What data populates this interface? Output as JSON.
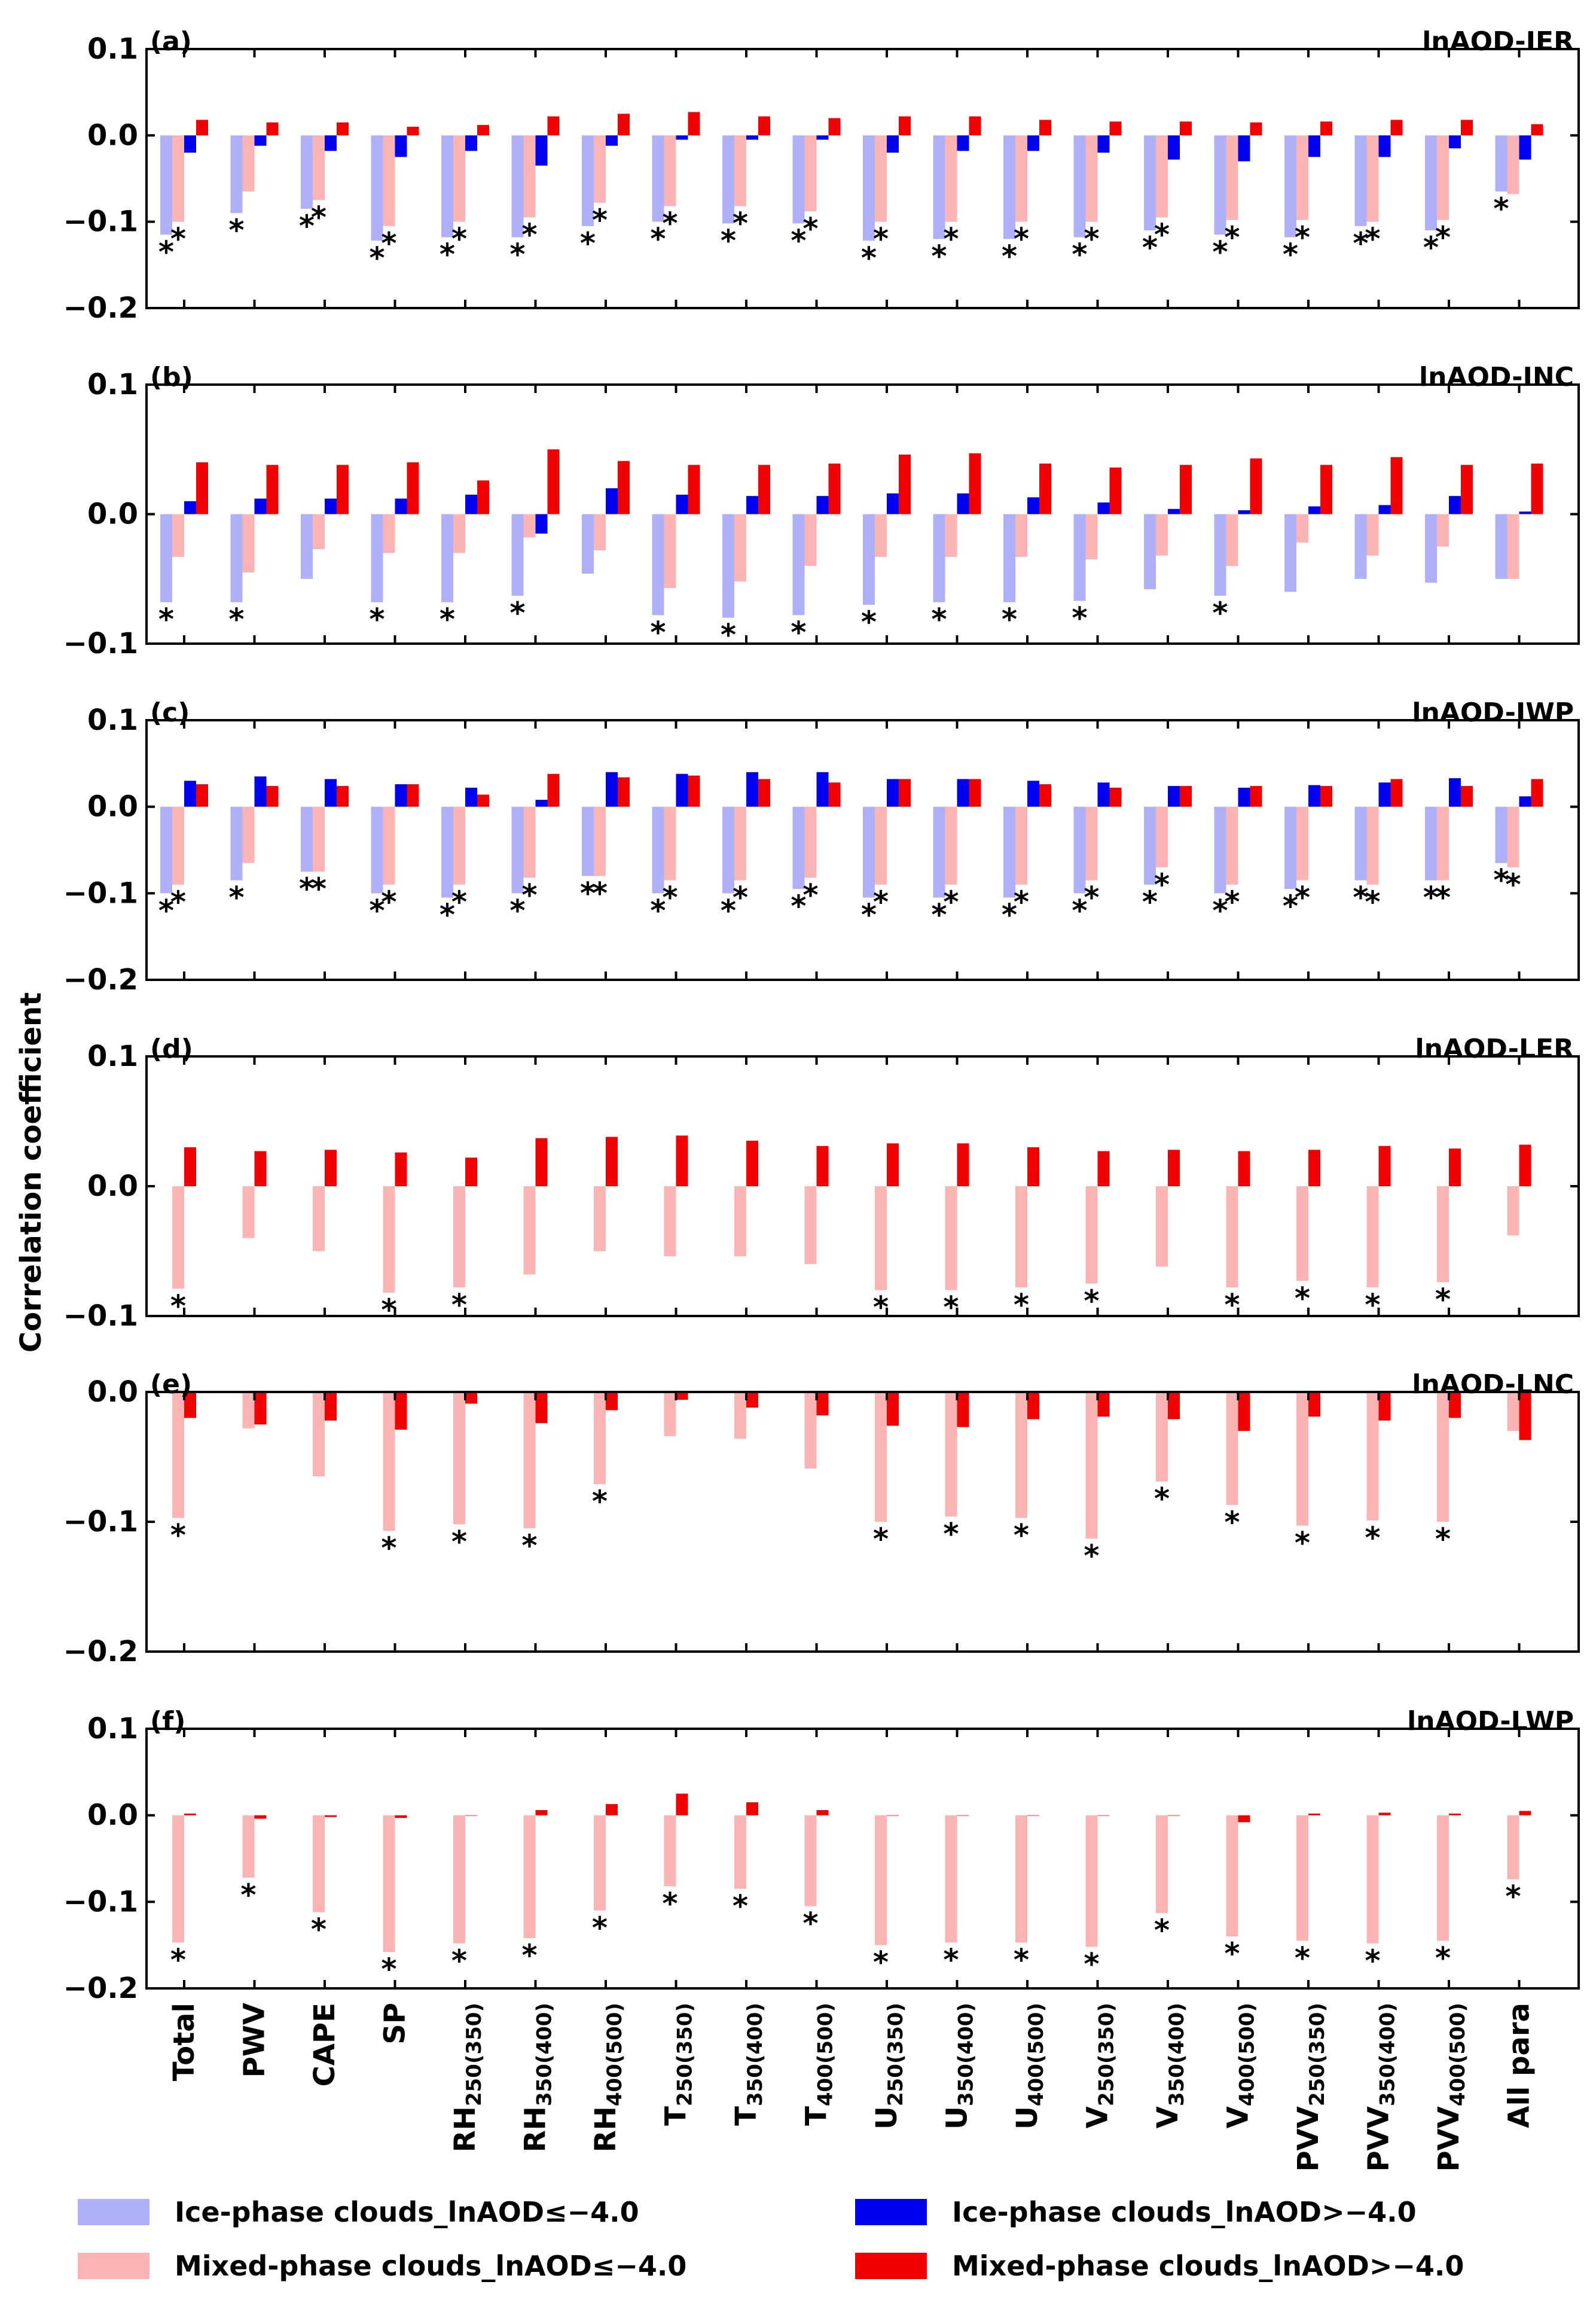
{
  "chart_data": {
    "type": "bar",
    "ylabel": "Correlation coefficient",
    "categories": [
      {
        "main": "Total",
        "sub": ""
      },
      {
        "main": "PWV",
        "sub": ""
      },
      {
        "main": "CAPE",
        "sub": ""
      },
      {
        "main": "SP",
        "sub": ""
      },
      {
        "main": "RH",
        "sub": "250(350)"
      },
      {
        "main": "RH",
        "sub": "350(400)"
      },
      {
        "main": "RH",
        "sub": "400(500)"
      },
      {
        "main": "T",
        "sub": "250(350)"
      },
      {
        "main": "T",
        "sub": "350(400)"
      },
      {
        "main": "T",
        "sub": "400(500)"
      },
      {
        "main": "U",
        "sub": "250(350)"
      },
      {
        "main": "U",
        "sub": "350(400)"
      },
      {
        "main": "U",
        "sub": "400(500)"
      },
      {
        "main": "V",
        "sub": "250(350)"
      },
      {
        "main": "V",
        "sub": "350(400)"
      },
      {
        "main": "V",
        "sub": "400(500)"
      },
      {
        "main": "PVV",
        "sub": "250(350)"
      },
      {
        "main": "PVV",
        "sub": "350(400)"
      },
      {
        "main": "PVV",
        "sub": "400(500)"
      },
      {
        "main": "All para",
        "sub": ""
      }
    ],
    "legend": [
      {
        "label": "Ice-phase clouds_lnAOD≤−4.0",
        "color": "#b0b0f8"
      },
      {
        "label": "Ice-phase clouds_lnAOD>−4.0",
        "color": "#0000f0"
      },
      {
        "label": "Mixed-phase clouds_lnAOD≤−4.0",
        "color": "#fab4b4"
      },
      {
        "label": "Mixed-phase clouds_lnAOD>−4.0",
        "color": "#f00000"
      }
    ],
    "significance_marker": "*",
    "panels": [
      {
        "letter": "(a)",
        "title": "lnAOD-IER",
        "ylim": [
          -0.2,
          0.1
        ],
        "yticks": [
          0.1,
          0.0,
          -0.1,
          -0.2
        ],
        "ytick_labels": [
          "0.1",
          "0.0",
          "−0.1",
          "−0.2"
        ],
        "series": [
          {
            "name": "Ice-phase clouds_lnAOD≤−4.0",
            "values": [
              -0.115,
              -0.09,
              -0.085,
              -0.122,
              -0.118,
              -0.118,
              -0.105,
              -0.1,
              -0.102,
              -0.102,
              -0.122,
              -0.12,
              -0.12,
              -0.118,
              -0.11,
              -0.115,
              -0.118,
              -0.105,
              -0.11,
              -0.065
            ],
            "stars": [
              true,
              true,
              true,
              true,
              true,
              true,
              true,
              true,
              true,
              true,
              true,
              true,
              true,
              true,
              true,
              true,
              true,
              true,
              true,
              true
            ]
          },
          {
            "name": "Mixed-phase clouds_lnAOD≤−4.0",
            "values": [
              -0.1,
              -0.065,
              -0.075,
              -0.105,
              -0.1,
              -0.095,
              -0.078,
              -0.082,
              -0.082,
              -0.088,
              -0.1,
              -0.1,
              -0.1,
              -0.1,
              -0.095,
              -0.098,
              -0.098,
              -0.1,
              -0.098,
              -0.068
            ],
            "stars": [
              true,
              false,
              true,
              true,
              true,
              true,
              true,
              true,
              true,
              true,
              true,
              true,
              true,
              true,
              true,
              true,
              true,
              true,
              true,
              false
            ]
          },
          {
            "name": "Ice-phase clouds_lnAOD>−4.0",
            "values": [
              -0.02,
              -0.012,
              -0.018,
              -0.025,
              -0.018,
              -0.035,
              -0.012,
              -0.005,
              -0.005,
              -0.005,
              -0.02,
              -0.018,
              -0.018,
              -0.02,
              -0.028,
              -0.03,
              -0.025,
              -0.025,
              -0.015,
              -0.028
            ]
          },
          {
            "name": "Mixed-phase clouds_lnAOD>−4.0",
            "values": [
              0.018,
              0.015,
              0.015,
              0.01,
              0.012,
              0.022,
              0.025,
              0.027,
              0.022,
              0.02,
              0.022,
              0.022,
              0.018,
              0.016,
              0.016,
              0.015,
              0.016,
              0.018,
              0.018,
              0.013
            ]
          }
        ]
      },
      {
        "letter": "(b)",
        "title": "lnAOD-INC",
        "ylim": [
          -0.1,
          0.1
        ],
        "yticks": [
          0.1,
          0.0,
          -0.1
        ],
        "ytick_labels": [
          "0.1",
          "0.0",
          "−0.1"
        ],
        "series": [
          {
            "name": "Ice-phase clouds_lnAOD≤−4.0",
            "values": [
              -0.068,
              -0.068,
              -0.05,
              -0.068,
              -0.068,
              -0.063,
              -0.046,
              -0.078,
              -0.08,
              -0.078,
              -0.07,
              -0.068,
              -0.068,
              -0.067,
              -0.058,
              -0.063,
              -0.06,
              -0.05,
              -0.053,
              -0.05
            ],
            "stars": [
              true,
              true,
              false,
              true,
              true,
              true,
              false,
              true,
              true,
              true,
              true,
              true,
              true,
              true,
              false,
              true,
              false,
              false,
              false,
              false
            ]
          },
          {
            "name": "Mixed-phase clouds_lnAOD≤−4.0",
            "values": [
              -0.033,
              -0.045,
              -0.027,
              -0.03,
              -0.03,
              -0.018,
              -0.028,
              -0.057,
              -0.052,
              -0.04,
              -0.033,
              -0.033,
              -0.033,
              -0.035,
              -0.032,
              -0.04,
              -0.022,
              -0.032,
              -0.025,
              -0.05
            ],
            "stars": [
              false,
              false,
              false,
              false,
              false,
              false,
              false,
              false,
              false,
              false,
              false,
              false,
              false,
              false,
              false,
              false,
              false,
              false,
              false,
              false
            ]
          },
          {
            "name": "Ice-phase clouds_lnAOD>−4.0",
            "values": [
              0.01,
              0.012,
              0.012,
              0.012,
              0.015,
              -0.015,
              0.02,
              0.015,
              0.014,
              0.014,
              0.016,
              0.016,
              0.013,
              0.009,
              0.004,
              0.003,
              0.006,
              0.007,
              0.014,
              0.002
            ]
          },
          {
            "name": "Mixed-phase clouds_lnAOD>−4.0",
            "values": [
              0.04,
              0.038,
              0.038,
              0.04,
              0.026,
              0.05,
              0.041,
              0.038,
              0.038,
              0.039,
              0.046,
              0.047,
              0.039,
              0.036,
              0.038,
              0.043,
              0.038,
              0.044,
              0.038,
              0.039
            ]
          }
        ]
      },
      {
        "letter": "(c)",
        "title": "lnAOD-IWP",
        "ylim": [
          -0.2,
          0.1
        ],
        "yticks": [
          0.1,
          0.0,
          -0.1,
          -0.2
        ],
        "ytick_labels": [
          "0.1",
          "0.0",
          "−0.1",
          "−0.2"
        ],
        "series": [
          {
            "name": "Ice-phase clouds_lnAOD≤−4.0",
            "values": [
              -0.1,
              -0.085,
              -0.075,
              -0.1,
              -0.105,
              -0.1,
              -0.08,
              -0.1,
              -0.1,
              -0.095,
              -0.105,
              -0.105,
              -0.105,
              -0.1,
              -0.09,
              -0.1,
              -0.095,
              -0.085,
              -0.085,
              -0.065
            ],
            "stars": [
              true,
              true,
              true,
              true,
              true,
              true,
              true,
              true,
              true,
              true,
              true,
              true,
              true,
              true,
              true,
              true,
              true,
              true,
              true,
              true
            ]
          },
          {
            "name": "Mixed-phase clouds_lnAOD≤−4.0",
            "values": [
              -0.09,
              -0.065,
              -0.075,
              -0.09,
              -0.09,
              -0.082,
              -0.08,
              -0.085,
              -0.085,
              -0.082,
              -0.09,
              -0.09,
              -0.09,
              -0.085,
              -0.07,
              -0.09,
              -0.085,
              -0.09,
              -0.085,
              -0.07
            ],
            "stars": [
              true,
              false,
              true,
              true,
              true,
              true,
              true,
              true,
              true,
              true,
              true,
              true,
              true,
              true,
              true,
              true,
              true,
              true,
              true,
              true
            ]
          },
          {
            "name": "Ice-phase clouds_lnAOD>−4.0",
            "values": [
              0.03,
              0.035,
              0.032,
              0.026,
              0.022,
              0.008,
              0.04,
              0.038,
              0.04,
              0.04,
              0.032,
              0.032,
              0.03,
              0.028,
              0.024,
              0.022,
              0.025,
              0.028,
              0.033,
              0.012
            ]
          },
          {
            "name": "Mixed-phase clouds_lnAOD>−4.0",
            "values": [
              0.026,
              0.024,
              0.024,
              0.026,
              0.014,
              0.038,
              0.034,
              0.036,
              0.032,
              0.028,
              0.032,
              0.032,
              0.026,
              0.022,
              0.024,
              0.024,
              0.024,
              0.032,
              0.024,
              0.032
            ]
          }
        ]
      },
      {
        "letter": "(d)",
        "title": "lnAOD-LER",
        "ylim": [
          -0.1,
          0.1
        ],
        "yticks": [
          0.1,
          0.0,
          -0.1
        ],
        "ytick_labels": [
          "0.1",
          "0.0",
          "−0.1"
        ],
        "series": [
          {
            "name": "Mixed-phase clouds_lnAOD≤−4.0",
            "values": [
              -0.079,
              -0.04,
              -0.05,
              -0.082,
              -0.078,
              -0.068,
              -0.05,
              -0.054,
              -0.054,
              -0.06,
              -0.08,
              -0.08,
              -0.078,
              -0.075,
              -0.062,
              -0.078,
              -0.073,
              -0.078,
              -0.074,
              -0.038
            ],
            "stars": [
              true,
              false,
              false,
              true,
              true,
              false,
              false,
              false,
              false,
              false,
              true,
              true,
              true,
              true,
              false,
              true,
              true,
              true,
              true,
              false
            ]
          },
          {
            "name": "Mixed-phase clouds_lnAOD>−4.0",
            "values": [
              0.03,
              0.027,
              0.028,
              0.026,
              0.022,
              0.037,
              0.038,
              0.039,
              0.035,
              0.031,
              0.033,
              0.033,
              0.03,
              0.027,
              0.028,
              0.027,
              0.028,
              0.031,
              0.029,
              0.032
            ]
          }
        ]
      },
      {
        "letter": "(e)",
        "title": "lnAOD-LNC",
        "ylim": [
          -0.2,
          0.0
        ],
        "yticks": [
          0.0,
          -0.1,
          -0.2
        ],
        "ytick_labels": [
          "0.0",
          "−0.1",
          "−0.2"
        ],
        "series": [
          {
            "name": "Mixed-phase clouds_lnAOD≤−4.0",
            "values": [
              -0.097,
              -0.028,
              -0.065,
              -0.107,
              -0.102,
              -0.105,
              -0.071,
              -0.034,
              -0.036,
              -0.059,
              -0.1,
              -0.096,
              -0.097,
              -0.113,
              -0.069,
              -0.087,
              -0.103,
              -0.099,
              -0.1,
              -0.03
            ],
            "stars": [
              true,
              false,
              false,
              true,
              true,
              true,
              true,
              false,
              false,
              false,
              true,
              true,
              true,
              true,
              true,
              true,
              true,
              true,
              true,
              false
            ]
          },
          {
            "name": "Mixed-phase clouds_lnAOD>−4.0",
            "values": [
              -0.02,
              -0.025,
              -0.022,
              -0.029,
              -0.009,
              -0.024,
              -0.014,
              -0.006,
              -0.012,
              -0.018,
              -0.026,
              -0.027,
              -0.021,
              -0.019,
              -0.021,
              -0.03,
              -0.019,
              -0.022,
              -0.02,
              -0.037
            ]
          }
        ]
      },
      {
        "letter": "(f)",
        "title": "lnAOD-LWP",
        "ylim": [
          -0.2,
          0.1
        ],
        "yticks": [
          0.1,
          0.0,
          -0.1,
          -0.2
        ],
        "ytick_labels": [
          "0.1",
          "0.0",
          "−0.1",
          "−0.2"
        ],
        "series": [
          {
            "name": "Mixed-phase clouds_lnAOD≤−4.0",
            "values": [
              -0.147,
              -0.072,
              -0.112,
              -0.158,
              -0.148,
              -0.142,
              -0.11,
              -0.082,
              -0.085,
              -0.105,
              -0.15,
              -0.147,
              -0.147,
              -0.152,
              -0.113,
              -0.14,
              -0.145,
              -0.148,
              -0.145,
              -0.074
            ],
            "stars": [
              true,
              true,
              true,
              true,
              true,
              true,
              true,
              true,
              true,
              true,
              true,
              true,
              true,
              true,
              true,
              true,
              true,
              true,
              true,
              true
            ]
          },
          {
            "name": "Mixed-phase clouds_lnAOD>−4.0",
            "values": [
              0.002,
              -0.004,
              -0.002,
              -0.003,
              0.0,
              0.006,
              0.013,
              0.025,
              0.015,
              0.006,
              0.0,
              0.0,
              0.0,
              0.0,
              0.0,
              -0.008,
              0.002,
              0.003,
              0.002,
              0.005
            ]
          }
        ]
      }
    ]
  }
}
